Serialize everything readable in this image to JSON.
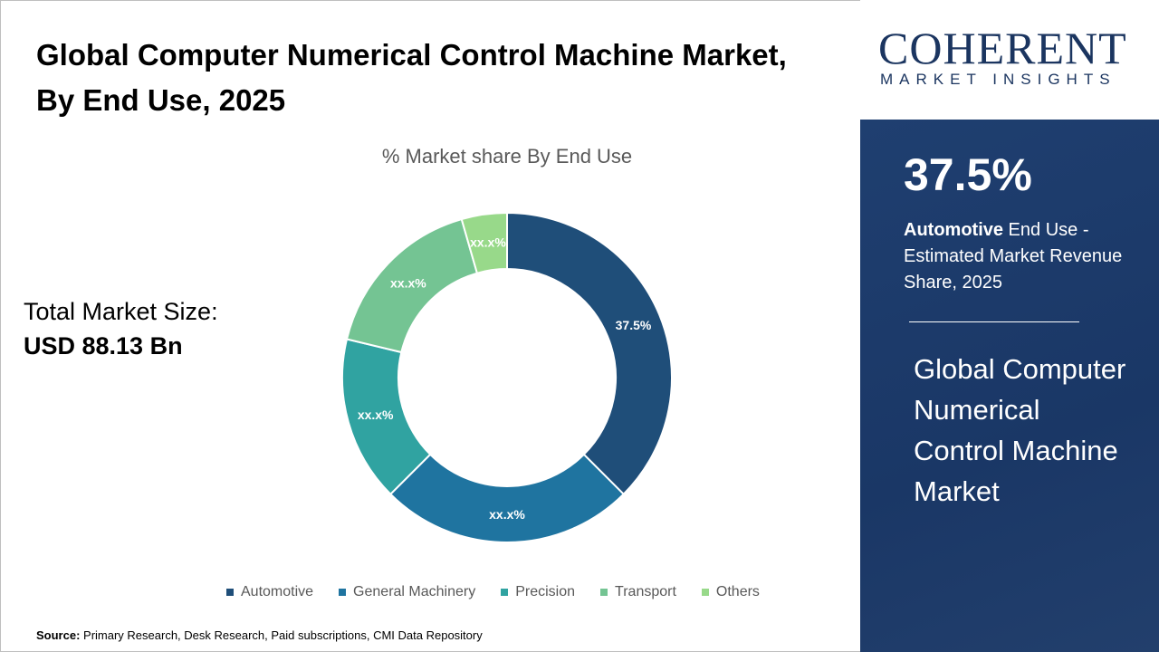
{
  "title": "Global Computer Numerical Control Machine Market, By End Use, 2025",
  "market": {
    "label": "Total Market Size:",
    "value": "USD 88.13 Bn"
  },
  "source": {
    "label": "Source:",
    "text": " Primary Research, Desk Research, Paid subscriptions, CMI Data Repository"
  },
  "logo": {
    "name": "COHERENT",
    "tagline": "MARKET INSIGHTS"
  },
  "panel": {
    "pct": "37.5%",
    "segment": "Automotive",
    "desc": "  End Use - Estimated Market Revenue Share, 2025",
    "title": "Global Computer Numerical Control Machine Market"
  },
  "chart_data": {
    "type": "pie",
    "donut": true,
    "title": "% Market share By End Use",
    "categories": [
      "Automotive",
      "General Machinery",
      "Precision",
      "Transport",
      "Others"
    ],
    "values": [
      37.5,
      25.0,
      16.25,
      16.8,
      4.45
    ],
    "labels": [
      "37.5%",
      "xx.x%",
      "xx.x%",
      "xx.x%",
      "xx.x%"
    ],
    "colors": [
      "#1f4e79",
      "#1f74a0",
      "#30a3a1",
      "#74c493",
      "#98d98a"
    ],
    "legend": "bottom"
  }
}
